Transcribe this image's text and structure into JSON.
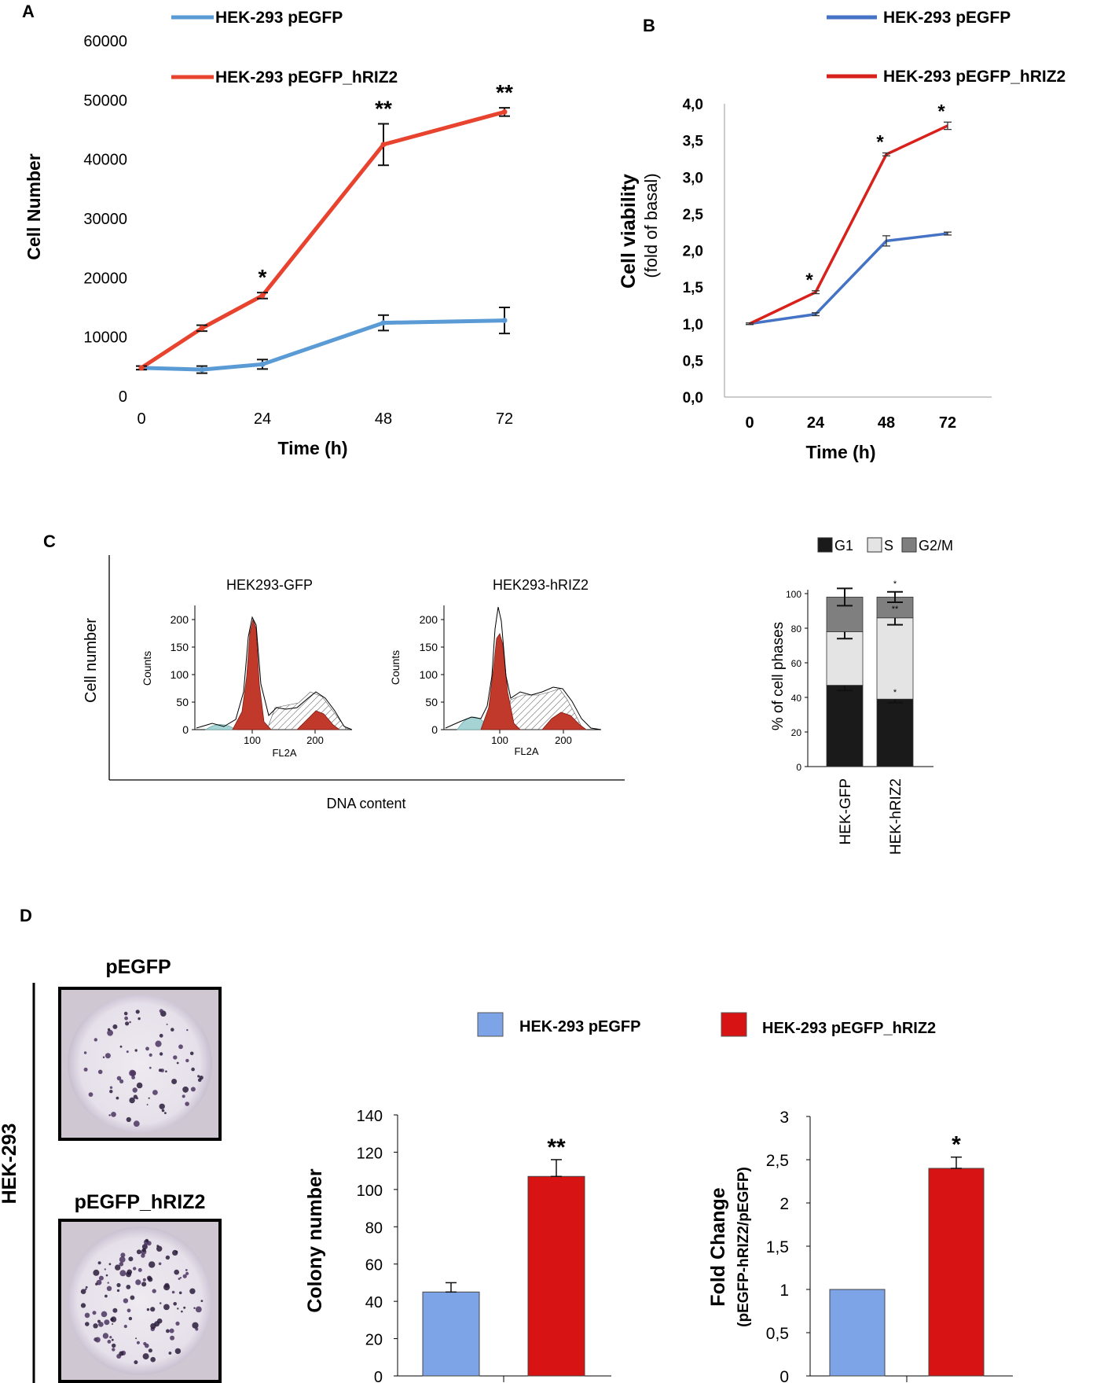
{
  "panels": {
    "A": "A",
    "B": "B",
    "C": "C",
    "D": "D"
  },
  "colors": {
    "egfp_light": "#5b9bd5",
    "hriz2_red": "#e8432f",
    "egfp_blue": "#4472c4",
    "hriz2_deep": "#d9211b",
    "bar_blue": "#7ea4e8",
    "bar_red": "#d71313"
  },
  "chart_data": [
    {
      "id": "A",
      "type": "line",
      "xlabel": "Time (h)",
      "ylabel": "Cell Number",
      "xlim": [
        0,
        72
      ],
      "ylim": [
        0,
        60000
      ],
      "xticks": [
        0,
        24,
        48,
        72
      ],
      "yticks": [
        0,
        10000,
        20000,
        30000,
        40000,
        50000,
        60000
      ],
      "xtick_labels": [
        "0",
        "24",
        "48",
        "72"
      ],
      "ytick_labels": [
        "0",
        "10000",
        "20000",
        "30000",
        "40000",
        "50000",
        "60000"
      ],
      "series": [
        {
          "name": "HEK-293 pEGFP",
          "color": "#5b9bd5",
          "x": [
            0,
            12,
            24,
            48,
            72
          ],
          "y": [
            4800,
            4500,
            5400,
            12400,
            12800
          ],
          "err": [
            300,
            600,
            800,
            1300,
            2200
          ],
          "sig": [
            "",
            "",
            "",
            "",
            ""
          ]
        },
        {
          "name": "HEK-293 pEGFP_hRIZ2",
          "color": "#e8432f",
          "x": [
            0,
            12,
            24,
            48,
            72
          ],
          "y": [
            4800,
            11500,
            17000,
            42500,
            48000
          ],
          "err": [
            300,
            500,
            500,
            3500,
            700
          ],
          "sig": [
            "",
            "",
            "*",
            "**",
            "**"
          ]
        }
      ]
    },
    {
      "id": "B",
      "type": "line",
      "xlabel": "Time (h)",
      "ylabel": "Cell viability",
      "ylabel2": "(fold of basal)",
      "categories": [
        "0",
        "24",
        "48",
        "72"
      ],
      "ylim": [
        0,
        4
      ],
      "yticks": [
        0,
        0.5,
        1,
        1.5,
        2,
        2.5,
        3,
        3.5,
        4
      ],
      "ytick_labels": [
        "0,0",
        "0,5",
        "1,0",
        "1,5",
        "2,0",
        "2,5",
        "3,0",
        "3,5",
        "4,0"
      ],
      "series": [
        {
          "name": "HEK-293 pEGFP",
          "color": "#4472c4",
          "values": [
            1.0,
            1.13,
            2.13,
            2.23
          ],
          "err": [
            0.01,
            0.02,
            0.07,
            0.02
          ],
          "sig": [
            "",
            "",
            "",
            ""
          ]
        },
        {
          "name": "HEK-293 pEGFP_hRIZ2",
          "color": "#d9211b",
          "values": [
            1.0,
            1.43,
            3.31,
            3.7
          ],
          "err": [
            0.01,
            0.02,
            0.02,
            0.05
          ],
          "sig": [
            "",
            "*",
            "*",
            "*"
          ]
        }
      ]
    },
    {
      "id": "C",
      "type": "area",
      "xlabel": "DNA content",
      "ylabel": "Cell number",
      "histograms": [
        {
          "title": "HEK293-GFP",
          "xlabel": "FL2A",
          "ylabel": "Counts",
          "xticks": [
            100,
            200
          ],
          "xtick_labels": [
            "100",
            "200"
          ],
          "yticks": [
            0,
            50,
            100,
            150,
            200
          ],
          "ytick_labels": [
            "0",
            "50",
            "100",
            "150",
            "200"
          ]
        },
        {
          "title": "HEK293-hRIZ2",
          "xlabel": "FL2A",
          "ylabel": "Counts",
          "xticks": [
            100,
            200
          ],
          "xtick_labels": [
            "100",
            "200"
          ],
          "yticks": [
            0,
            50,
            100,
            150,
            200
          ],
          "ytick_labels": [
            "0",
            "50",
            "100",
            "150",
            "200"
          ]
        }
      ]
    },
    {
      "id": "C-bar",
      "type": "bar",
      "stacked": true,
      "ylabel": "% of cell phases",
      "categories": [
        "HEK-GFP",
        "HEK-hRIZ2"
      ],
      "ylim": [
        0,
        100
      ],
      "yticks": [
        0,
        20,
        40,
        60,
        80,
        100
      ],
      "ytick_labels": [
        "0",
        "20",
        "40",
        "60",
        "80",
        "100"
      ],
      "series": [
        {
          "name": "G1",
          "color": "#1a1a1a",
          "values": [
            47,
            39
          ],
          "err": [
            3,
            2
          ]
        },
        {
          "name": "S",
          "color": "#e4e4e4",
          "values": [
            31,
            47
          ],
          "err": [
            4,
            4
          ]
        },
        {
          "name": "G2/M",
          "color": "#7f7f7f",
          "values": [
            20,
            12
          ],
          "err": [
            5,
            3
          ]
        }
      ],
      "annotations": [
        "*",
        "**",
        "*"
      ]
    },
    {
      "id": "D-colony",
      "type": "bar",
      "ylabel": "Colony number",
      "categories": [
        "HEK-293 pEGFP",
        "HEK-293 pEGFP_hRIZ2"
      ],
      "values": [
        45,
        107
      ],
      "err": [
        5,
        9
      ],
      "sig": [
        "",
        "**"
      ],
      "ylim": [
        0,
        140
      ],
      "yticks": [
        0,
        20,
        40,
        60,
        80,
        100,
        120,
        140
      ],
      "ytick_labels": [
        "0",
        "20",
        "40",
        "60",
        "80",
        "100",
        "120",
        "140"
      ]
    },
    {
      "id": "D-fold",
      "type": "bar",
      "ylabel": "Fold Change",
      "ylabel2": "(pEGFP-hRIZ2/pEGFP)",
      "categories": [
        "HEK-293 pEGFP",
        "HEK-293 pEGFP_hRIZ2"
      ],
      "values": [
        1.0,
        2.4
      ],
      "err": [
        0,
        0.13
      ],
      "sig": [
        "",
        "*"
      ],
      "ylim": [
        0,
        3
      ],
      "yticks": [
        0,
        0.5,
        1,
        1.5,
        2,
        2.5,
        3
      ],
      "ytick_labels": [
        "0",
        "0,5",
        "1",
        "1,5",
        "2",
        "2,5",
        "3"
      ]
    }
  ],
  "panel_d": {
    "cell_line": "HEK-293",
    "plate_labels": [
      "pEGFP",
      "pEGFP_hRIZ2"
    ],
    "legend": [
      "HEK-293 pEGFP",
      "HEK-293 pEGFP_hRIZ2"
    ]
  }
}
